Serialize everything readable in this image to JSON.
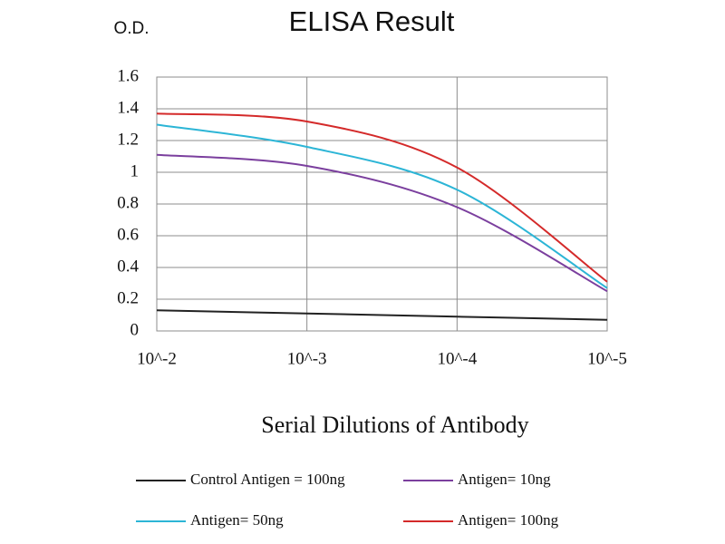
{
  "chart_data": {
    "type": "line",
    "title": "ELISA Result",
    "y_label": "O.D.",
    "x_label": "Serial Dilutions of Antibody",
    "categories": [
      "10^-2",
      "10^-3",
      "10^-4",
      "10^-5"
    ],
    "series": [
      {
        "name": "Control Antigen = 100ng",
        "color": "#222222",
        "values": [
          0.13,
          0.11,
          0.09,
          0.07
        ]
      },
      {
        "name": "Antigen= 10ng",
        "color": "#7b3f9e",
        "values": [
          1.11,
          1.04,
          0.78,
          0.25
        ]
      },
      {
        "name": "Antigen= 50ng",
        "color": "#2cb5d6",
        "values": [
          1.3,
          1.16,
          0.89,
          0.27
        ]
      },
      {
        "name": "Antigen= 100ng",
        "color": "#d42a2a",
        "values": [
          1.37,
          1.32,
          1.03,
          0.31
        ]
      }
    ],
    "ylim": [
      0,
      1.6
    ],
    "yticks": [
      0,
      0.2,
      0.4,
      0.6,
      0.8,
      1,
      1.2,
      1.4,
      1.6
    ],
    "grid": true,
    "smooth": true
  }
}
